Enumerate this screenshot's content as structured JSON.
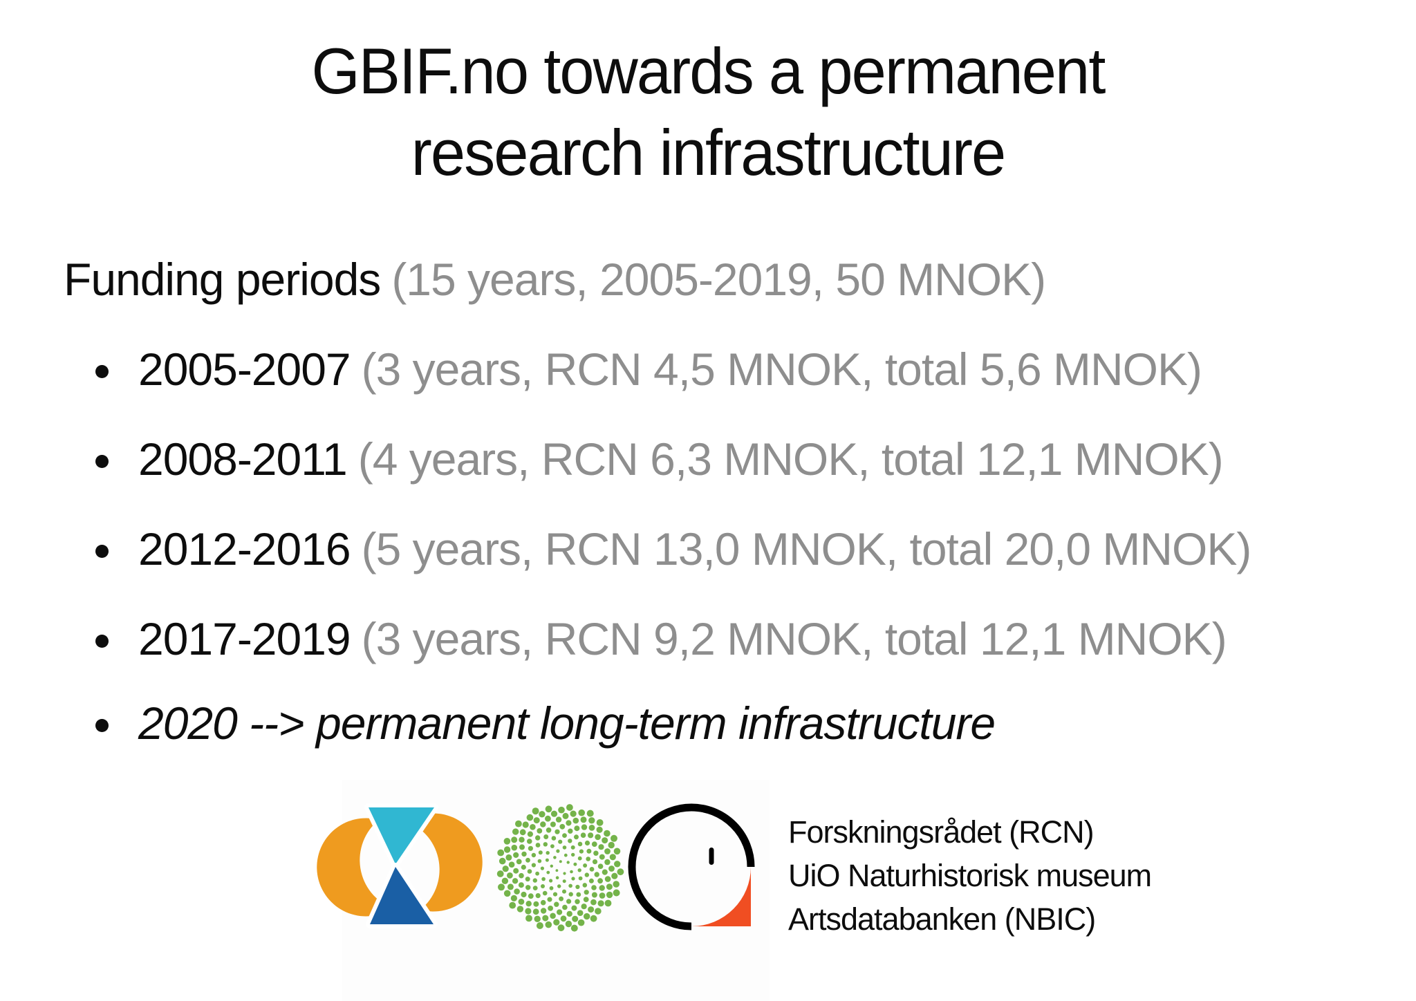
{
  "slide": {
    "title_line1": "GBIF.no towards a permanent",
    "title_line2": "research infrastructure",
    "heading": {
      "main": "Funding periods",
      "detail": "(15 years, 2005-2019, 50 MNOK)"
    },
    "bullets": [
      {
        "term": "2005-2007",
        "detail": "(3 years, RCN 4,5 MNOK, total 5,6 MNOK)"
      },
      {
        "term": "2008-2011",
        "detail": "(4 years, RCN 6,3 MNOK, total 12,1 MNOK)"
      },
      {
        "term": "2012-2016",
        "detail": "(5 years, RCN 13,0 MNOK, total 20,0 MNOK)"
      },
      {
        "term": "2017-2019",
        "detail": "(3 years, RCN 9,2 MNOK, total 12,1 MNOK)"
      }
    ],
    "final_bullet": "2020 --> permanent long-term infrastructure",
    "footer": {
      "logos": [
        "gbif-logo",
        "rcn-spiral-logo",
        "nbic-logo"
      ],
      "lines": [
        "Forskningsrådet (RCN)",
        "UiO Naturhistorisk museum",
        "Artsdatabanken (NBIC)"
      ]
    }
  },
  "colors": {
    "text_black": "#0d0d0d",
    "text_gray": "#8e8e8e",
    "gbif_cyan": "#30b7d2",
    "gbif_blue": "#1a5fa5",
    "gbif_orange": "#ef9b1f",
    "rcn_green": "#74b34a",
    "nbic_orange": "#f04e22",
    "nbic_black": "#000000"
  }
}
